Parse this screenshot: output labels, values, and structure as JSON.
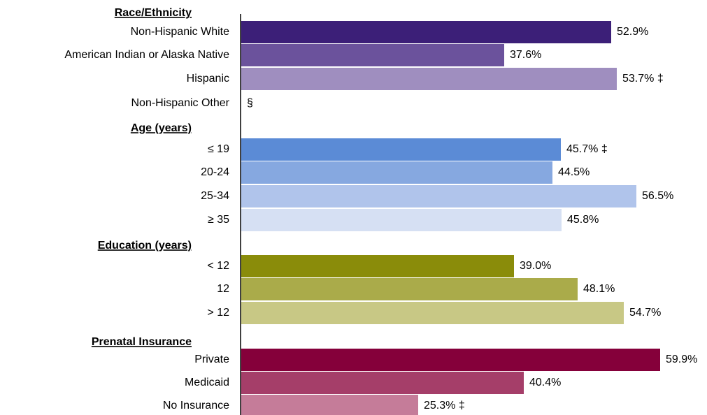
{
  "chart_data": {
    "type": "bar",
    "orientation": "horizontal",
    "xlim": [
      0,
      60
    ],
    "grid": false,
    "groups": [
      {
        "title": "Race/Ethnicity",
        "bars": [
          {
            "label": "Non-Hispanic White",
            "value": 52.9,
            "display": "52.9%",
            "color": "#3c1f78"
          },
          {
            "label": "American Indian or Alaska Native",
            "value": 37.6,
            "display": "37.6%",
            "color": "#6b529c"
          },
          {
            "label": "Hispanic",
            "value": 53.7,
            "display": "53.7% ‡",
            "color": "#9f8ebf"
          },
          {
            "label": "Non-Hispanic Other",
            "value": null,
            "display": "§",
            "color": "#c8bedb"
          }
        ]
      },
      {
        "title": "Age (years)",
        "bars": [
          {
            "label": "≤ 19",
            "value": 45.7,
            "display": "45.7% ‡",
            "color": "#5b8bd6"
          },
          {
            "label": "20-24",
            "value": 44.5,
            "display": "44.5%",
            "color": "#86a8e0"
          },
          {
            "label": "25-34",
            "value": 56.5,
            "display": "56.5%",
            "color": "#b0c4eb"
          },
          {
            "label": "≥ 35",
            "value": 45.8,
            "display": "45.8%",
            "color": "#d6e0f3"
          }
        ]
      },
      {
        "title": "Education (years)",
        "bars": [
          {
            "label": "< 12",
            "value": 39.0,
            "display": "39.0%",
            "color": "#8a8c0a"
          },
          {
            "label": "12",
            "value": 48.1,
            "display": "48.1%",
            "color": "#aaab4a"
          },
          {
            "label": "> 12",
            "value": 54.7,
            "display": "54.7%",
            "color": "#c8c885"
          }
        ]
      },
      {
        "title": "Prenatal Insurance",
        "bars": [
          {
            "label": "Private",
            "value": 59.9,
            "display": "59.9%",
            "color": "#85003a"
          },
          {
            "label": "Medicaid",
            "value": 40.4,
            "display": "40.4%",
            "color": "#a53e69"
          },
          {
            "label": "No Insurance",
            "value": 25.3,
            "display": "25.3% ‡",
            "color": "#c57c99"
          }
        ]
      }
    ]
  }
}
